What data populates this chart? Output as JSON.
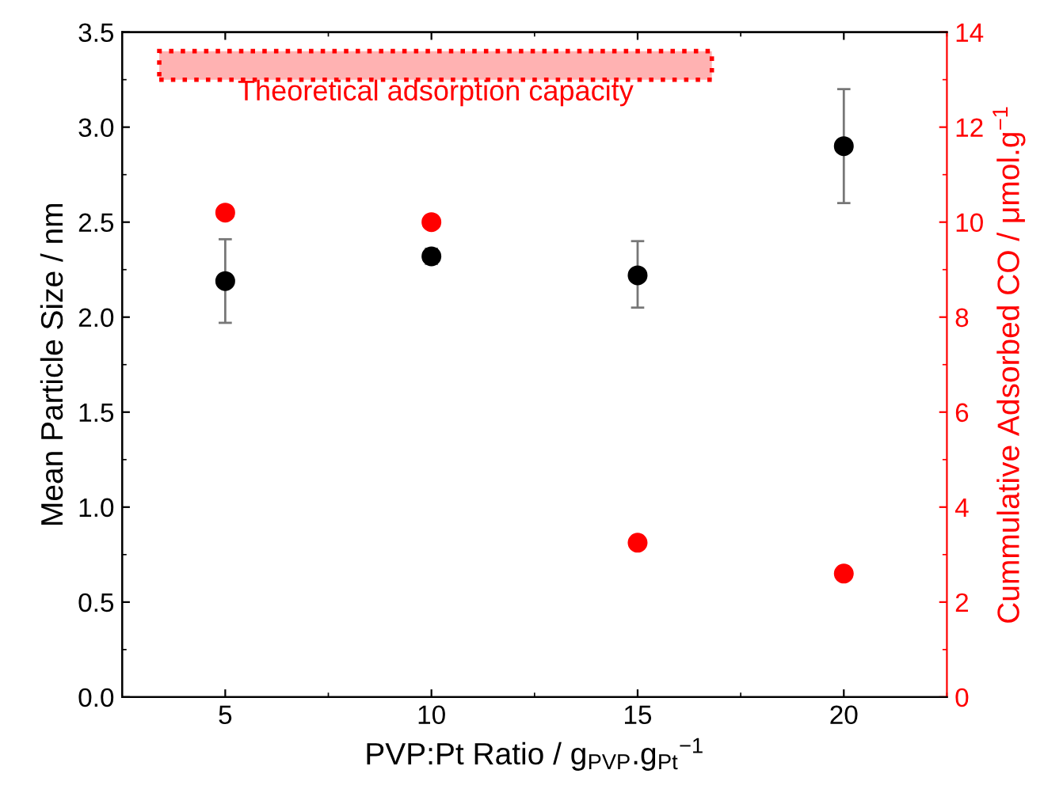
{
  "chart_data": {
    "type": "scatter",
    "xlabel": "PVP:Pt Ratio / g$_{PVP}$.g$_{Pt}$$^{−1}$",
    "ylabel": "Mean Particle Size / nm",
    "y2label": "Cummulative Adsorbed CO / μmol.g$^{−1}$",
    "x": [
      5,
      10,
      15,
      20
    ],
    "series": [
      {
        "color": "#000000",
        "values": [
          2.19,
          2.32,
          2.22,
          2.9
        ],
        "errors": [
          [
            1.97,
            2.41
          ],
          [
            2.28,
            2.36
          ],
          [
            2.05,
            2.4
          ],
          [
            2.6,
            3.2
          ]
        ]
      },
      {
        "color": "#ff0000",
        "axis": "y2",
        "values": [
          10.2,
          10.0,
          3.25,
          2.6
        ]
      }
    ],
    "bands": [
      {
        "axis": "y2",
        "from": 13.0,
        "to": 13.6,
        "label": "Theoretical adsorption capacity",
        "color": "#ff0000"
      }
    ],
    "xlim": [
      2.5,
      22.5
    ],
    "xticks": [
      5,
      10,
      15,
      20
    ],
    "ylim": [
      0,
      3.5
    ],
    "yticks": [
      {
        "value": 0,
        "label": "0.0"
      },
      0.5,
      {
        "value": 1,
        "label": "1.0"
      },
      1.5,
      {
        "value": 2,
        "label": "2.0"
      },
      2.5,
      {
        "value": 3,
        "label": "3.0"
      },
      3.5
    ],
    "y2lim": [
      0,
      14
    ],
    "y2ticks": [
      0,
      2,
      4,
      6,
      8,
      10,
      12,
      14
    ],
    "marker": "circle",
    "grid": false,
    "legend": false
  }
}
